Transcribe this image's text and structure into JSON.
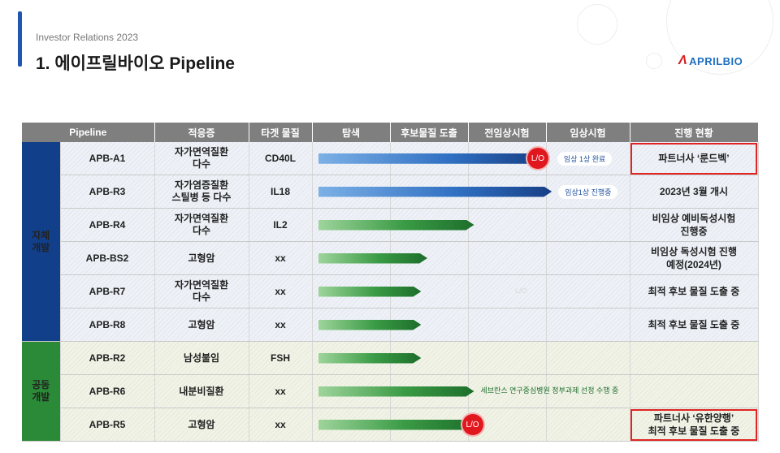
{
  "header": {
    "subtitle": "Investor Relations 2023",
    "title": "1. 에이프릴바이오 Pipeline"
  },
  "logo": {
    "text": "APRILBIO"
  },
  "table": {
    "columns": [
      "Pipeline",
      "적응증",
      "타겟 물질",
      "탐색",
      "후보물질 도출",
      "전임상시험",
      "임상시험",
      "진행 현황"
    ],
    "groups": [
      {
        "label": "자체\n개발"
      },
      {
        "label": "공동\n개발"
      }
    ],
    "rows": [
      {
        "pipeline": "APB-A1",
        "indication": "자가면역질환\n다수",
        "target": "CD40L",
        "status": "파트너사 ‘룬드벡’",
        "highlight": true,
        "group": 0
      },
      {
        "pipeline": "APB-R3",
        "indication": "자가염증질환\n스틸병 등 다수",
        "target": "IL18",
        "status": "2023년 3월 개시",
        "highlight": false,
        "group": 0
      },
      {
        "pipeline": "APB-R4",
        "indication": "자가면역질환\n다수",
        "target": "IL2",
        "status": "비임상 예비독성시험\n진행중",
        "highlight": false,
        "group": 0
      },
      {
        "pipeline": "APB-BS2",
        "indication": "고형암",
        "target": "xx",
        "status": "비임상 독성시험 진행\n예정(2024년)",
        "highlight": false,
        "group": 0
      },
      {
        "pipeline": "APB-R7",
        "indication": "자가면역질환\n다수",
        "target": "xx",
        "status": "최적 후보 물질 도출 중",
        "highlight": false,
        "group": 0
      },
      {
        "pipeline": "APB-R8",
        "indication": "고형암",
        "target": "xx",
        "status": "최적 후보 물질 도출 중",
        "highlight": false,
        "group": 0
      },
      {
        "pipeline": "APB-R2",
        "indication": "남성불임",
        "target": "FSH",
        "status": "",
        "highlight": false,
        "group": 1
      },
      {
        "pipeline": "APB-R6",
        "indication": "내분비질환",
        "target": "xx",
        "status": "",
        "highlight": false,
        "group": 1
      },
      {
        "pipeline": "APB-R5",
        "indication": "고형암",
        "target": "xx",
        "status": "파트너사 ‘유한양행’\n최적 후보 물질 도출 중",
        "highlight": true,
        "group": 1
      }
    ]
  },
  "progress": [
    {
      "row": 0,
      "stage_fraction": 0.71,
      "color": "blue",
      "lo_label": "L/O",
      "note": "임상 1상 완료",
      "note_style": "pill"
    },
    {
      "row": 1,
      "stage_fraction": 0.75,
      "color": "blue",
      "lo_label": "",
      "note": "임상1상 진행중",
      "note_style": "pill"
    },
    {
      "row": 2,
      "stage_fraction": 0.5,
      "color": "green",
      "lo_label": "",
      "note": "",
      "note_style": ""
    },
    {
      "row": 3,
      "stage_fraction": 0.35,
      "color": "green",
      "lo_label": "",
      "note": "",
      "note_style": ""
    },
    {
      "row": 4,
      "stage_fraction": 0.33,
      "color": "green",
      "lo_label": "",
      "note": "",
      "note_style": ""
    },
    {
      "row": 5,
      "stage_fraction": 0.33,
      "color": "green",
      "lo_label": "",
      "note": "",
      "note_style": ""
    },
    {
      "row": 6,
      "stage_fraction": 0.33,
      "color": "green",
      "lo_label": "",
      "note": "",
      "note_style": ""
    },
    {
      "row": 7,
      "stage_fraction": 0.5,
      "color": "green",
      "lo_label": "",
      "note": "세브란스 연구중심병원 정부과제 선정 수행 중",
      "note_style": "plain"
    },
    {
      "row": 8,
      "stage_fraction": 0.5,
      "color": "green",
      "lo_label": "L/O",
      "note": "",
      "note_style": ""
    }
  ],
  "ghost_text": "L/O",
  "colors": {
    "accent": "#1f56b0",
    "own_group": "#113f8a",
    "joint_group": "#2b8a37",
    "highlight": "#e02424",
    "lo_badge": "#e0181e"
  }
}
